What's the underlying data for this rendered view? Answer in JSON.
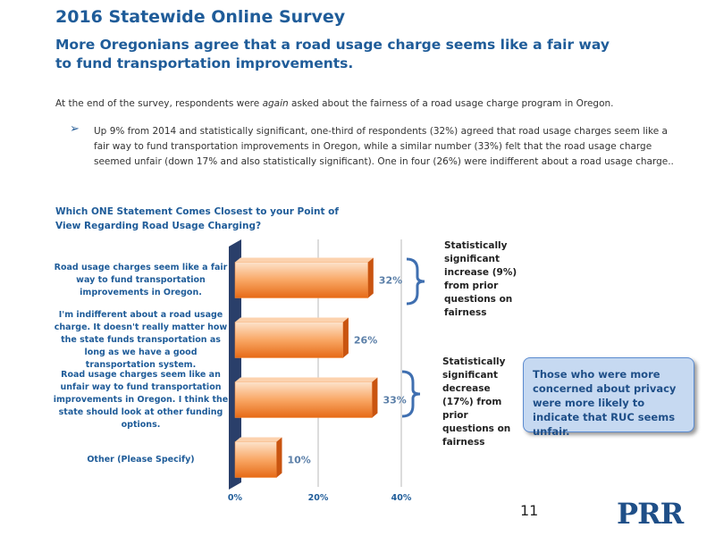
{
  "title": "2016 Statewide Online Survey",
  "subtitle": "More Oregonians agree that a road usage charge seems like a fair way to fund transportation improvements.",
  "intro": [
    "At the end of the survey, respondents were ",
    "again",
    " asked about the fairness of a road usage charge program in Oregon."
  ],
  "bullet": "Up 9% from 2014 and statistically significant, one-third of respondents (32%) agreed that road usage charges seem like a fair way to fund transportation improvements in Oregon, while a similar number (33%) felt that the road usage charge seemed unfair (down 17% and also statistically significant).  One in four (26%) were indifferent about a road usage charge..",
  "chart_data": {
    "type": "bar",
    "title": "Which ONE Statement Comes Closest to your Point of View Regarding Road Usage Charging?",
    "categories": [
      "Road usage charges seem like a fair way to fund transportation improvements in Oregon.",
      "I'm indifferent about a road usage charge. It doesn't really matter how the state funds transportation as long as we have a good transportation system.",
      "Road usage charges seem like an unfair way to fund transportation improvements in Oregon. I think the state should look at other funding options.",
      "Other (Please Specify)"
    ],
    "values": [
      32,
      26,
      33,
      10
    ],
    "value_labels": [
      "32%",
      "26%",
      "33%",
      "10%"
    ],
    "color": "#f58a3c",
    "xlim": [
      0,
      40
    ],
    "xticks": [
      {
        "value": 0,
        "label": "0%"
      },
      {
        "value": 20,
        "label": "20%"
      },
      {
        "value": 40,
        "label": "40%"
      }
    ],
    "grid": true,
    "annotations": [
      "Statistically significant increase (9%) from prior questions on fairness",
      "Statistically significant decrease (17%) from prior questions on fairness"
    ]
  },
  "callout": "Those who were more concerned about privacy were more likely to indicate that RUC seems unfair.",
  "page_number": "11",
  "logo": "PRR"
}
